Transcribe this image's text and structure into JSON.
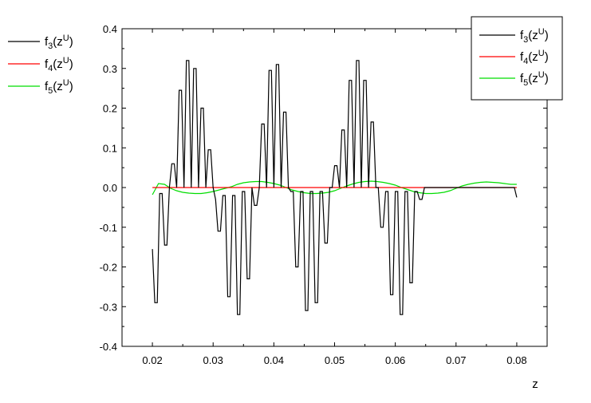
{
  "chart_data": {
    "type": "line",
    "title": "",
    "xlabel": "z",
    "ylabel": "",
    "xlim": [
      0.015,
      0.085
    ],
    "ylim": [
      -0.4,
      0.4
    ],
    "xticks": [
      "0.02",
      "0.03",
      "0.04",
      "0.05",
      "0.06",
      "0.07",
      "0.08"
    ],
    "yticks": [
      "-0.4",
      "-0.3",
      "-0.2",
      "-0.1",
      "0.0",
      "0.1",
      "0.2",
      "0.3",
      "0.4"
    ],
    "grid": false,
    "legend": {
      "placement": "top-right",
      "entries": [
        "f3(zU)",
        "f4(zU)",
        "f5(zU)"
      ]
    },
    "legend_outside": {
      "placement": "top-left",
      "entries": [
        "f3(zU)",
        "f4(zU)",
        "f5(zU)"
      ]
    },
    "series": [
      {
        "name": "f3(zU)",
        "color": "#000000",
        "x": [
          0.02,
          0.0204,
          0.0208,
          0.0212,
          0.0216,
          0.022,
          0.0224,
          0.0228,
          0.0232,
          0.0236,
          0.024,
          0.0244,
          0.0248,
          0.0252,
          0.0256,
          0.026,
          0.0264,
          0.0268,
          0.0272,
          0.0276,
          0.028,
          0.0284,
          0.0288,
          0.0292,
          0.0296,
          0.03,
          0.0304,
          0.0308,
          0.0312,
          0.0316,
          0.032,
          0.0324,
          0.0328,
          0.0332,
          0.0336,
          0.034,
          0.0344,
          0.0348,
          0.0352,
          0.0356,
          0.036,
          0.0364,
          0.0368,
          0.0372,
          0.0376,
          0.038,
          0.0384,
          0.0388,
          0.0392,
          0.0396,
          0.04,
          0.0404,
          0.0408,
          0.0412,
          0.0416,
          0.042,
          0.0424,
          0.0428,
          0.0432,
          0.0436,
          0.044,
          0.0444,
          0.0448,
          0.0452,
          0.0456,
          0.046,
          0.0464,
          0.0468,
          0.0472,
          0.0476,
          0.048,
          0.0484,
          0.0488,
          0.0492,
          0.0496,
          0.05,
          0.0504,
          0.0508,
          0.0512,
          0.0516,
          0.052,
          0.0524,
          0.0528,
          0.0532,
          0.0536,
          0.054,
          0.0544,
          0.0548,
          0.0552,
          0.0556,
          0.056,
          0.0564,
          0.0568,
          0.0572,
          0.0576,
          0.058,
          0.0584,
          0.0588,
          0.0592,
          0.0596,
          0.06,
          0.0604,
          0.0608,
          0.0612,
          0.0616,
          0.062,
          0.0624,
          0.0628,
          0.0632,
          0.0636,
          0.064,
          0.0644,
          0.0648,
          0.0652,
          0.0656,
          0.066,
          0.0664,
          0.0668,
          0.0672,
          0.0676,
          0.068,
          0.0684,
          0.0688,
          0.0692,
          0.0696,
          0.07,
          0.0704,
          0.0708,
          0.0712,
          0.0716,
          0.072,
          0.0724,
          0.0728,
          0.0732,
          0.0736,
          0.074,
          0.0744,
          0.0748,
          0.0752,
          0.0756,
          0.076,
          0.0764,
          0.0768,
          0.0772,
          0.0776,
          0.078,
          0.0784,
          0.0788,
          0.0792,
          0.0796,
          0.08
        ],
        "y": [
          -0.155,
          -0.29,
          -0.29,
          -0.015,
          -0.015,
          -0.145,
          -0.145,
          0.0,
          0.06,
          0.06,
          0.0,
          0.245,
          0.245,
          0.0,
          0.32,
          0.32,
          0.0,
          0.3,
          0.3,
          0.0,
          0.2,
          0.2,
          0.0,
          0.095,
          0.095,
          0.0,
          -0.03,
          -0.11,
          -0.11,
          -0.02,
          -0.02,
          -0.275,
          -0.275,
          -0.02,
          -0.02,
          -0.32,
          -0.32,
          -0.01,
          -0.01,
          -0.23,
          -0.23,
          0.0,
          -0.045,
          -0.045,
          0.0,
          0.16,
          0.16,
          0.0,
          0.295,
          0.295,
          0.0,
          0.31,
          0.31,
          0.0,
          0.19,
          0.19,
          0.0,
          -0.01,
          -0.01,
          -0.2,
          -0.2,
          -0.01,
          -0.01,
          -0.31,
          -0.31,
          -0.01,
          -0.01,
          -0.29,
          -0.29,
          -0.01,
          -0.01,
          -0.14,
          -0.14,
          0.0,
          0.0,
          0.055,
          0.055,
          0.0,
          0.145,
          0.145,
          0.0,
          0.27,
          0.27,
          0.0,
          0.32,
          0.32,
          0.0,
          0.27,
          0.27,
          0.0,
          0.165,
          0.165,
          0.0,
          0.0,
          -0.1,
          -0.1,
          -0.01,
          -0.01,
          -0.27,
          -0.27,
          -0.01,
          -0.01,
          -0.32,
          -0.32,
          -0.01,
          -0.01,
          -0.24,
          -0.24,
          -0.01,
          -0.01,
          -0.03,
          -0.03,
          0.0,
          0.0,
          0.0,
          0.0,
          0.0,
          0.0,
          0.0,
          0.0,
          0.0,
          0.0,
          0.0,
          0.0,
          0.0,
          0.0,
          0.0,
          0.0,
          0.0,
          0.0,
          0.0,
          0.0,
          0.0,
          0.0,
          0.0,
          0.0,
          0.0,
          0.0,
          0.0,
          0.0,
          0.0,
          0.0,
          0.0,
          0.0,
          0.0,
          0.0,
          0.0,
          0.0,
          0.0,
          0.0,
          -0.025
        ]
      },
      {
        "name": "f4(zU)",
        "color": "#ff0000",
        "x": [
          0.02,
          0.08
        ],
        "y": [
          0.0,
          0.0
        ]
      },
      {
        "name": "f5(zU)",
        "color": "#00dd00",
        "x": [
          0.02,
          0.021,
          0.022,
          0.023,
          0.024,
          0.025,
          0.026,
          0.027,
          0.028,
          0.029,
          0.03,
          0.031,
          0.032,
          0.033,
          0.034,
          0.035,
          0.036,
          0.037,
          0.038,
          0.039,
          0.04,
          0.041,
          0.042,
          0.043,
          0.044,
          0.045,
          0.046,
          0.047,
          0.048,
          0.049,
          0.05,
          0.051,
          0.052,
          0.053,
          0.054,
          0.055,
          0.056,
          0.057,
          0.058,
          0.059,
          0.06,
          0.061,
          0.062,
          0.063,
          0.064,
          0.065,
          0.066,
          0.067,
          0.068,
          0.069,
          0.07,
          0.071,
          0.072,
          0.073,
          0.074,
          0.075,
          0.076,
          0.077,
          0.078,
          0.079,
          0.08
        ],
        "y": [
          -0.018,
          0.01,
          0.008,
          -0.002,
          -0.008,
          -0.012,
          -0.014,
          -0.015,
          -0.015,
          -0.013,
          -0.01,
          -0.006,
          -0.002,
          0.002,
          0.008,
          0.012,
          0.014,
          0.015,
          0.015,
          0.013,
          0.01,
          0.006,
          0.0,
          -0.006,
          -0.01,
          -0.013,
          -0.015,
          -0.015,
          -0.014,
          -0.012,
          -0.008,
          -0.002,
          0.004,
          0.009,
          0.013,
          0.015,
          0.016,
          0.015,
          0.013,
          0.01,
          0.006,
          0.0,
          -0.005,
          -0.01,
          -0.013,
          -0.015,
          -0.015,
          -0.014,
          -0.012,
          -0.008,
          -0.002,
          0.004,
          0.008,
          0.011,
          0.013,
          0.014,
          0.013,
          0.012,
          0.01,
          0.008,
          0.008
        ]
      }
    ]
  }
}
